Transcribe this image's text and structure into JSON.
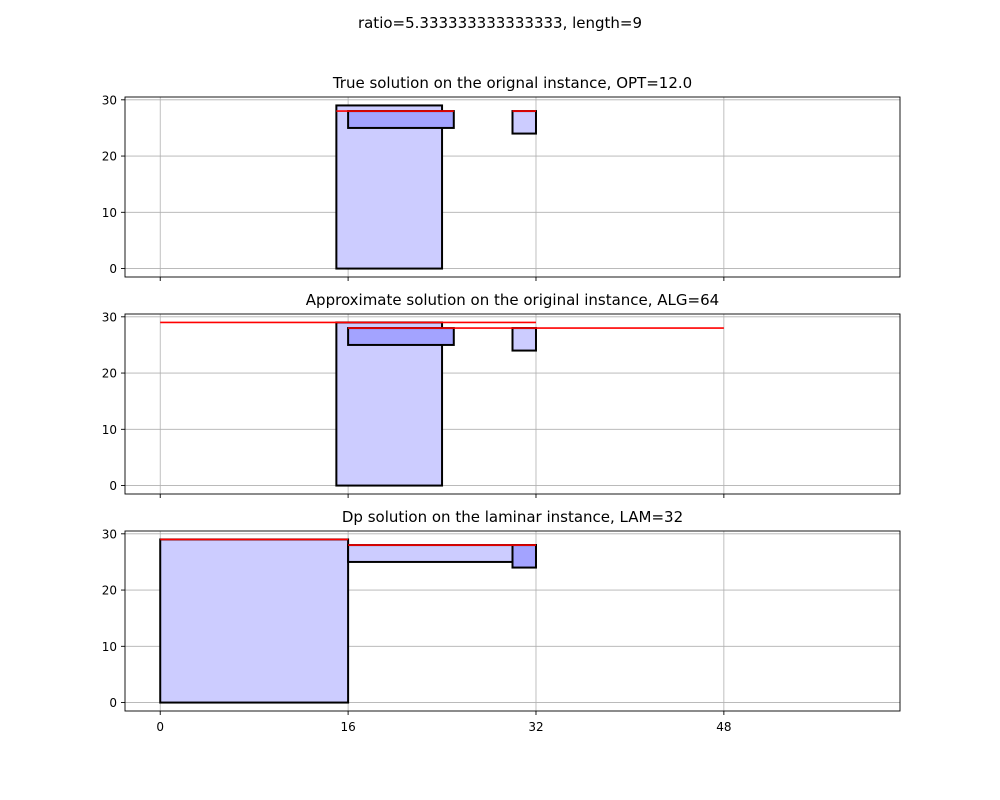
{
  "figure": {
    "suptitle": "ratio=5.333333333333333, length=9"
  },
  "colors": {
    "fill_light": "#ccccff",
    "fill_dark": "#a3a3ff",
    "edge": "#000000",
    "line": "#ff0000",
    "grid": "#b0b0b0"
  },
  "chart_data": [
    {
      "type": "rectangles",
      "title": "True solution on the orignal instance, OPT=12.0",
      "xlim": [
        -3,
        63
      ],
      "ylim": [
        -1.5,
        30.5
      ],
      "xticks": [
        0,
        16,
        32,
        48
      ],
      "yticks": [
        0,
        10,
        20,
        30
      ],
      "show_xtick_labels": false,
      "grid": true,
      "rects": [
        {
          "x": 15,
          "y": 0,
          "w": 9,
          "h": 29,
          "fill": "light"
        },
        {
          "x": 16,
          "y": 25,
          "w": 9,
          "h": 3,
          "fill": "dark"
        },
        {
          "x": 30,
          "y": 24,
          "w": 2,
          "h": 4,
          "fill": "light"
        }
      ],
      "lines": [
        {
          "x": [
            15,
            25
          ],
          "y": 28
        },
        {
          "x": [
            30,
            32
          ],
          "y": 28
        }
      ]
    },
    {
      "type": "rectangles",
      "title": "Approximate solution on the original instance, ALG=64",
      "xlim": [
        -3,
        63
      ],
      "ylim": [
        -1.5,
        30.5
      ],
      "xticks": [
        0,
        16,
        32,
        48
      ],
      "yticks": [
        0,
        10,
        20,
        30
      ],
      "show_xtick_labels": false,
      "grid": true,
      "rects": [
        {
          "x": 15,
          "y": 0,
          "w": 9,
          "h": 29,
          "fill": "light"
        },
        {
          "x": 16,
          "y": 25,
          "w": 9,
          "h": 3,
          "fill": "dark"
        },
        {
          "x": 30,
          "y": 24,
          "w": 2,
          "h": 4,
          "fill": "light"
        }
      ],
      "lines": [
        {
          "x": [
            0,
            32
          ],
          "y": 29
        },
        {
          "x": [
            16,
            48
          ],
          "y": 28
        }
      ]
    },
    {
      "type": "rectangles",
      "title": "Dp solution on the laminar instance, LAM=32",
      "xlim": [
        -3,
        63
      ],
      "ylim": [
        -1.5,
        30.5
      ],
      "xticks": [
        0,
        16,
        32,
        48
      ],
      "yticks": [
        0,
        10,
        20,
        30
      ],
      "show_xtick_labels": true,
      "grid": true,
      "rects": [
        {
          "x": 0,
          "y": 0,
          "w": 16,
          "h": 29,
          "fill": "light"
        },
        {
          "x": 16,
          "y": 25,
          "w": 16,
          "h": 3,
          "fill": "light"
        },
        {
          "x": 30,
          "y": 24,
          "w": 2,
          "h": 4,
          "fill": "dark"
        }
      ],
      "lines": [
        {
          "x": [
            0,
            16
          ],
          "y": 29
        },
        {
          "x": [
            16,
            32
          ],
          "y": 28
        }
      ]
    }
  ]
}
